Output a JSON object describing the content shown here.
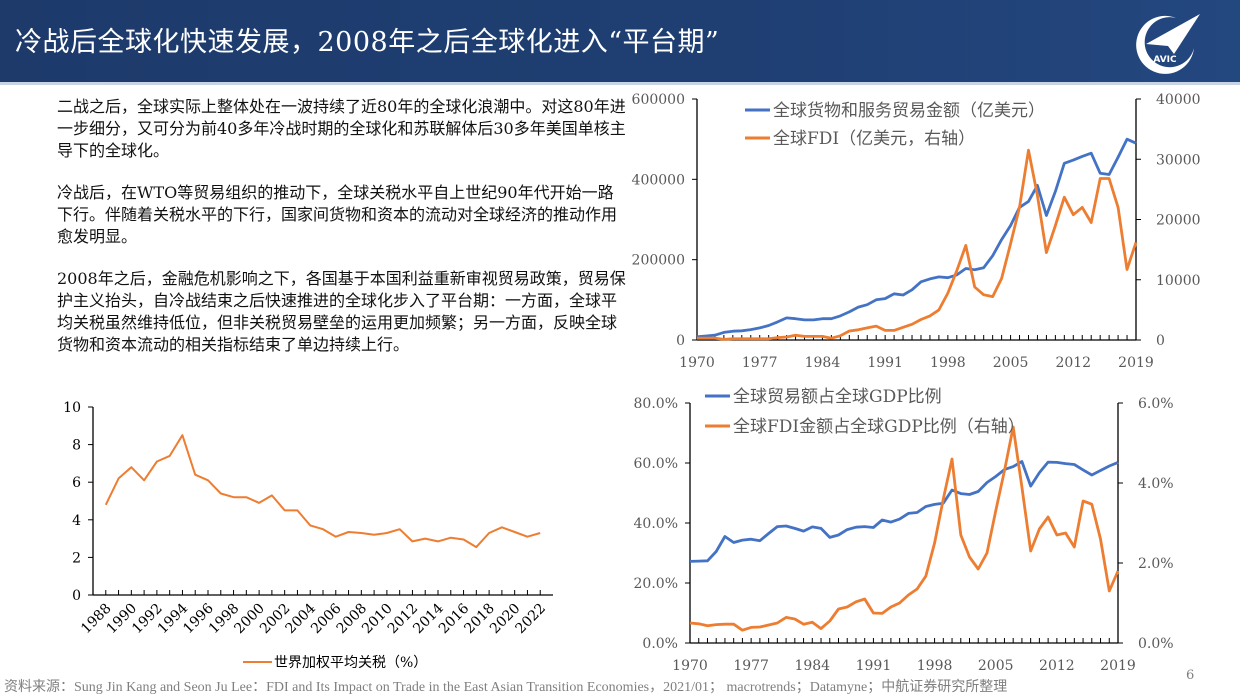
{
  "header": {
    "title": "冷战后全球化快速发展，2008年之后全球化进入“平台期”",
    "logo_text": "AVIC"
  },
  "paragraphs": [
    "二战之后，全球实际上整体处在一波持续了近80年的全球化浪潮中。对这80年进一步细分，又可分为前40多年冷战时期的全球化和苏联解体后30多年美国单核主导下的全球化。",
    "冷战后，在WTO等贸易组织的推动下，全球关税水平自上世纪90年代开始一路下行。伴随着关税水平的下行，国家间货物和资本的流动对全球经济的推动作用愈发明显。",
    "2008年之后，金融危机影响之下，各国基于本国利益重新审视贸易政策，贸易保护主义抬头，自冷战结束之后快速推进的全球化步入了平台期：一方面，全球平均关税虽然维持低位，但非关税贸易壁垒的运用更加频繁；另一方面，反映全球货物和资本流动的相关指标结束了单边持续上行。"
  ],
  "footer": {
    "source": "资料来源：Sung Jin Kang and Seon Ju Lee：FDI and Its Impact on Trade in the East Asian Transition Economies，2021/01；  macrotrends；Datamyne；中航证券研究所整理",
    "page_number": "6"
  },
  "colors": {
    "blue": "#4472c4",
    "orange": "#ed7d31",
    "header": "#1f3f73"
  },
  "chart_data": [
    {
      "type": "line",
      "x": [
        1970,
        1971,
        1972,
        1973,
        1974,
        1975,
        1976,
        1977,
        1978,
        1979,
        1980,
        1981,
        1982,
        1983,
        1984,
        1985,
        1986,
        1987,
        1988,
        1989,
        1990,
        1991,
        1992,
        1993,
        1994,
        1995,
        1996,
        1997,
        1998,
        1999,
        2000,
        2001,
        2002,
        2003,
        2004,
        2005,
        2006,
        2007,
        2008,
        2009,
        2010,
        2011,
        2012,
        2013,
        2014,
        2015,
        2016,
        2017,
        2018,
        2019
      ],
      "xticks": [
        "1970",
        "1977",
        "1984",
        "1991",
        "1998",
        "2005",
        "2012",
        "2019"
      ],
      "ylim": [
        0,
        600000
      ],
      "yticks": [
        "0",
        "200000",
        "400000",
        "600000"
      ],
      "y2lim": [
        0,
        40000
      ],
      "y2ticks": [
        "0",
        "10000",
        "20000",
        "30000",
        "40000"
      ],
      "legend": "top-left",
      "series": [
        {
          "name": "全球货物和服务贸易金额（亿美元）",
          "axis": "left",
          "color": "#4472c4",
          "values": [
            8000,
            10000,
            12000,
            19000,
            22000,
            23000,
            26000,
            30000,
            36000,
            45000,
            55000,
            53000,
            50000,
            50000,
            53000,
            53000,
            60000,
            70000,
            82000,
            88000,
            100000,
            103000,
            115000,
            112000,
            125000,
            145000,
            152000,
            157000,
            155000,
            162000,
            178000,
            175000,
            180000,
            210000,
            250000,
            285000,
            330000,
            345000,
            385000,
            310000,
            370000,
            440000,
            448000,
            457000,
            465000,
            415000,
            412000,
            455000,
            500000,
            490000
          ]
        },
        {
          "name": "全球FDI（亿美元，右轴）",
          "axis": "right",
          "color": "#ed7d31",
          "values": [
            300,
            300,
            300,
            100,
            200,
            200,
            200,
            200,
            200,
            400,
            500,
            800,
            600,
            600,
            600,
            300,
            700,
            1500,
            1700,
            2000,
            2300,
            1600,
            1600,
            2100,
            2600,
            3400,
            4000,
            5000,
            7800,
            11500,
            15700,
            8800,
            7500,
            7200,
            10200,
            16000,
            22000,
            31500,
            24000,
            14500,
            19000,
            23700,
            20800,
            22000,
            19500,
            26800,
            26800,
            22000,
            11700,
            16200
          ]
        }
      ]
    },
    {
      "type": "line",
      "x": [
        1970,
        1971,
        1972,
        1973,
        1974,
        1975,
        1976,
        1977,
        1978,
        1979,
        1980,
        1981,
        1982,
        1983,
        1984,
        1985,
        1986,
        1987,
        1988,
        1989,
        1990,
        1991,
        1992,
        1993,
        1994,
        1995,
        1996,
        1997,
        1998,
        1999,
        2000,
        2001,
        2002,
        2003,
        2004,
        2005,
        2006,
        2007,
        2008,
        2009,
        2010,
        2011,
        2012,
        2013,
        2014,
        2015,
        2016,
        2017,
        2018,
        2019
      ],
      "xticks": [
        "1970",
        "1977",
        "1984",
        "1991",
        "1998",
        "2005",
        "2012",
        "2019"
      ],
      "ylim": [
        0,
        80
      ],
      "yticks": [
        "0.0%",
        "20.0%",
        "40.0%",
        "60.0%",
        "80.0%"
      ],
      "y2lim": [
        0,
        6
      ],
      "y2ticks": [
        "0.0%",
        "2.0%",
        "4.0%",
        "6.0%"
      ],
      "legend": "top-left",
      "series": [
        {
          "name": "全球贸易额占全球GDP比例",
          "axis": "left",
          "color": "#4472c4",
          "values": [
            27.2,
            27.3,
            27.4,
            30.5,
            35.5,
            33.5,
            34.3,
            34.6,
            34.1,
            36.5,
            38.8,
            39,
            38.2,
            37.3,
            38.7,
            38.2,
            35.2,
            36,
            37.8,
            38.6,
            38.8,
            38.5,
            41,
            40.3,
            41.3,
            43.2,
            43.5,
            45.5,
            46.2,
            46.6,
            51,
            49.8,
            49.5,
            50.5,
            53.5,
            55.5,
            57.8,
            58.8,
            60.5,
            52.3,
            56.8,
            60.3,
            60.2,
            59.8,
            59.5,
            57.7,
            56,
            57.5,
            59,
            60.2
          ]
        },
        {
          "name": "全球FDI金额占全球GDP比例（右轴）",
          "axis": "right",
          "color": "#ed7d31",
          "values": [
            0.5,
            0.48,
            0.43,
            0.46,
            0.47,
            0.47,
            0.32,
            0.39,
            0.4,
            0.45,
            0.5,
            0.64,
            0.6,
            0.47,
            0.52,
            0.36,
            0.55,
            0.85,
            0.9,
            1.03,
            1.1,
            0.75,
            0.74,
            0.9,
            1.0,
            1.2,
            1.35,
            1.67,
            2.5,
            3.6,
            4.6,
            2.7,
            2.15,
            1.85,
            2.25,
            3.3,
            4.3,
            5.4,
            3.9,
            2.3,
            2.85,
            3.15,
            2.7,
            2.75,
            2.4,
            3.55,
            3.47,
            2.6,
            1.3,
            1.8
          ]
        }
      ]
    },
    {
      "type": "line",
      "x": [
        1988,
        1989,
        1990,
        1991,
        1992,
        1993,
        1994,
        1995,
        1996,
        1997,
        1998,
        1999,
        2000,
        2001,
        2002,
        2003,
        2004,
        2005,
        2006,
        2007,
        2008,
        2009,
        2010,
        2011,
        2012,
        2013,
        2014,
        2015,
        2016,
        2017,
        2018,
        2019,
        2020,
        2021,
        2022
      ],
      "xticks": [
        "1988",
        "1990",
        "1992",
        "1994",
        "1996",
        "1998",
        "2000",
        "2002",
        "2004",
        "2006",
        "2008",
        "2010",
        "2012",
        "2014",
        "2016",
        "2018",
        "2020",
        "2022"
      ],
      "ylim": [
        0,
        10
      ],
      "yticks": [
        "0",
        "2",
        "4",
        "6",
        "8",
        "10"
      ],
      "legend": "bottom",
      "series": [
        {
          "name": "世界加权平均关税（%）",
          "axis": "left",
          "color": "#ed7d31",
          "values": [
            4.8,
            6.2,
            6.8,
            6.1,
            7.1,
            7.4,
            8.5,
            6.4,
            6.1,
            5.4,
            5.2,
            5.2,
            4.9,
            5.3,
            4.5,
            4.5,
            3.7,
            3.5,
            3.1,
            3.35,
            3.3,
            3.2,
            3.3,
            3.5,
            2.85,
            3.0,
            2.85,
            3.05,
            2.95,
            2.55,
            3.3,
            3.6,
            3.35,
            3.1,
            3.3
          ]
        }
      ]
    }
  ]
}
